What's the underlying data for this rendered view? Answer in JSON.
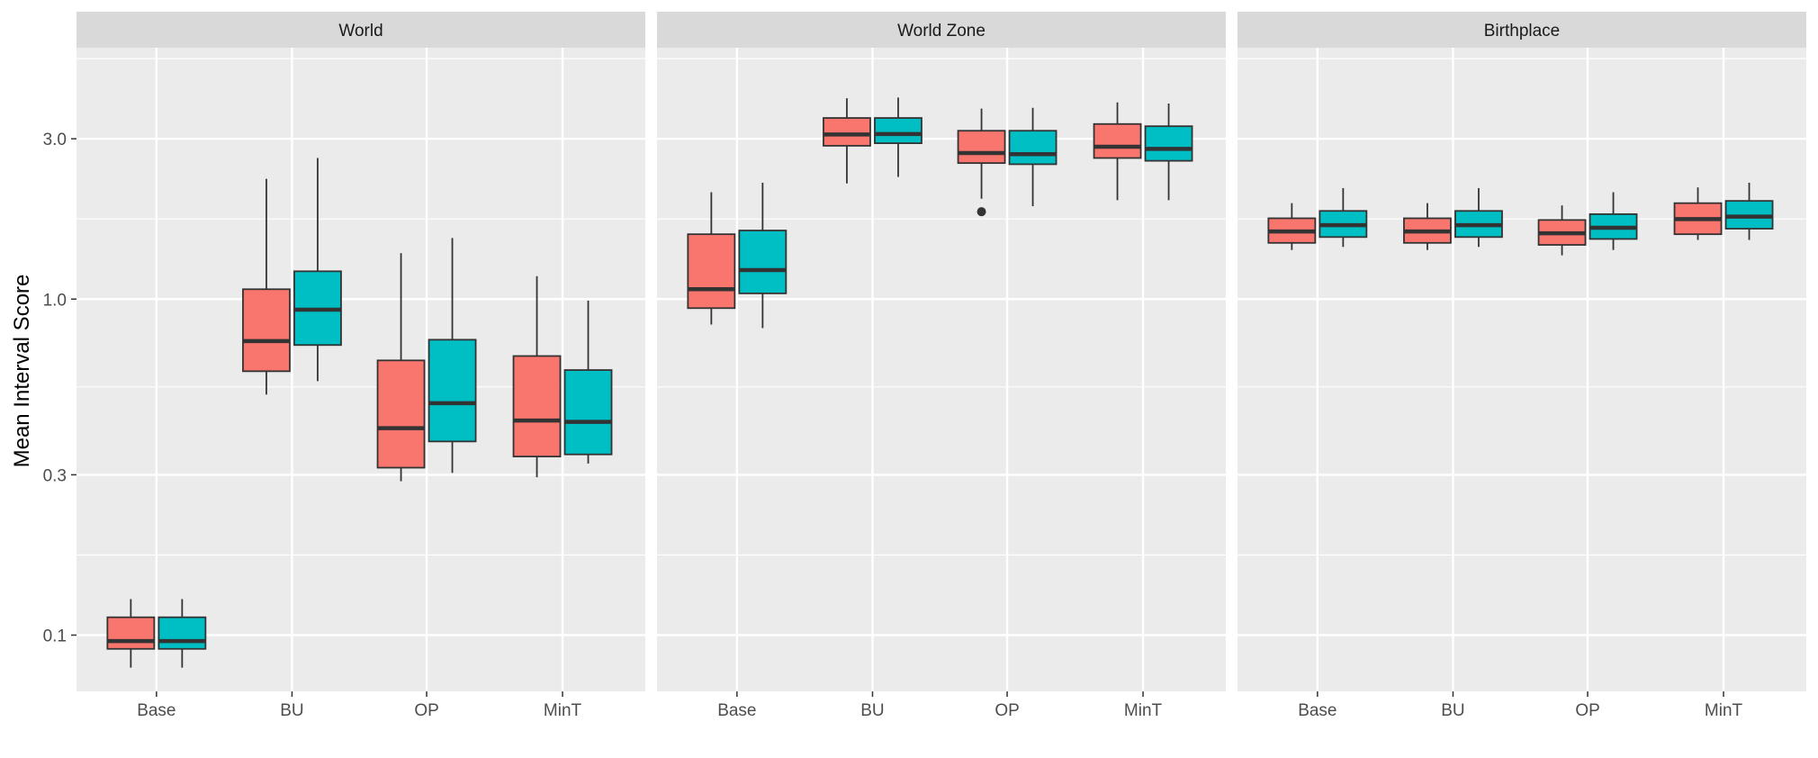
{
  "chart_data": {
    "type": "boxplot",
    "ylabel": "Mean Interval Score",
    "xlabel": "",
    "y_scale": "log10",
    "ylim": [
      0.068,
      5.6
    ],
    "y_ticks": [
      {
        "value": 0.1,
        "label": "0.1"
      },
      {
        "value": 0.3,
        "label": "0.3"
      },
      {
        "value": 1.0,
        "label": "1.0"
      },
      {
        "value": 3.0,
        "label": "3.0"
      }
    ],
    "categories": [
      "Base",
      "BU",
      "OP",
      "MinT"
    ],
    "series_colors": [
      "#F8766D",
      "#00BFC4"
    ],
    "panels": [
      {
        "title": "World",
        "boxes": [
          {
            "category": "Base",
            "series": 1,
            "whisker_low": 0.08,
            "q1": 0.091,
            "median": 0.096,
            "q3": 0.113,
            "whisker_high": 0.128,
            "outliers": []
          },
          {
            "category": "Base",
            "series": 2,
            "whisker_low": 0.08,
            "q1": 0.091,
            "median": 0.096,
            "q3": 0.113,
            "whisker_high": 0.128,
            "outliers": []
          },
          {
            "category": "BU",
            "series": 1,
            "whisker_low": 0.52,
            "q1": 0.61,
            "median": 0.75,
            "q3": 1.07,
            "whisker_high": 2.28,
            "outliers": []
          },
          {
            "category": "BU",
            "series": 2,
            "whisker_low": 0.57,
            "q1": 0.73,
            "median": 0.93,
            "q3": 1.21,
            "whisker_high": 2.63,
            "outliers": []
          },
          {
            "category": "OP",
            "series": 1,
            "whisker_low": 0.287,
            "q1": 0.315,
            "median": 0.413,
            "q3": 0.657,
            "whisker_high": 1.37,
            "outliers": []
          },
          {
            "category": "OP",
            "series": 2,
            "whisker_low": 0.304,
            "q1": 0.377,
            "median": 0.49,
            "q3": 0.757,
            "whisker_high": 1.52,
            "outliers": []
          },
          {
            "category": "MinT",
            "series": 1,
            "whisker_low": 0.295,
            "q1": 0.34,
            "median": 0.435,
            "q3": 0.677,
            "whisker_high": 1.17,
            "outliers": []
          },
          {
            "category": "MinT",
            "series": 2,
            "whisker_low": 0.324,
            "q1": 0.345,
            "median": 0.431,
            "q3": 0.615,
            "whisker_high": 0.99,
            "outliers": []
          }
        ]
      },
      {
        "title": "World Zone",
        "boxes": [
          {
            "category": "Base",
            "series": 1,
            "whisker_low": 0.84,
            "q1": 0.94,
            "median": 1.07,
            "q3": 1.56,
            "whisker_high": 2.08,
            "outliers": []
          },
          {
            "category": "Base",
            "series": 2,
            "whisker_low": 0.82,
            "q1": 1.04,
            "median": 1.22,
            "q3": 1.6,
            "whisker_high": 2.22,
            "outliers": []
          },
          {
            "category": "BU",
            "series": 1,
            "whisker_low": 2.21,
            "q1": 2.86,
            "median": 3.09,
            "q3": 3.46,
            "whisker_high": 3.96,
            "outliers": []
          },
          {
            "category": "BU",
            "series": 2,
            "whisker_low": 2.31,
            "q1": 2.91,
            "median": 3.1,
            "q3": 3.46,
            "whisker_high": 3.98,
            "outliers": []
          },
          {
            "category": "OP",
            "series": 1,
            "whisker_low": 1.99,
            "q1": 2.54,
            "median": 2.72,
            "q3": 3.17,
            "whisker_high": 3.69,
            "outliers": [
              1.82
            ]
          },
          {
            "category": "OP",
            "series": 2,
            "whisker_low": 1.89,
            "q1": 2.52,
            "median": 2.7,
            "q3": 3.17,
            "whisker_high": 3.71,
            "outliers": []
          },
          {
            "category": "MinT",
            "series": 1,
            "whisker_low": 1.97,
            "q1": 2.63,
            "median": 2.84,
            "q3": 3.32,
            "whisker_high": 3.85,
            "outliers": []
          },
          {
            "category": "MinT",
            "series": 2,
            "whisker_low": 1.97,
            "q1": 2.58,
            "median": 2.8,
            "q3": 3.27,
            "whisker_high": 3.82,
            "outliers": []
          }
        ]
      },
      {
        "title": "Birthplace",
        "boxes": [
          {
            "category": "Base",
            "series": 1,
            "whisker_low": 1.4,
            "q1": 1.47,
            "median": 1.59,
            "q3": 1.74,
            "whisker_high": 1.93,
            "outliers": []
          },
          {
            "category": "Base",
            "series": 2,
            "whisker_low": 1.43,
            "q1": 1.53,
            "median": 1.66,
            "q3": 1.83,
            "whisker_high": 2.14,
            "outliers": []
          },
          {
            "category": "BU",
            "series": 1,
            "whisker_low": 1.4,
            "q1": 1.47,
            "median": 1.59,
            "q3": 1.74,
            "whisker_high": 1.93,
            "outliers": []
          },
          {
            "category": "BU",
            "series": 2,
            "whisker_low": 1.43,
            "q1": 1.53,
            "median": 1.66,
            "q3": 1.83,
            "whisker_high": 2.14,
            "outliers": []
          },
          {
            "category": "OP",
            "series": 1,
            "whisker_low": 1.35,
            "q1": 1.45,
            "median": 1.57,
            "q3": 1.72,
            "whisker_high": 1.9,
            "outliers": []
          },
          {
            "category": "OP",
            "series": 2,
            "whisker_low": 1.4,
            "q1": 1.51,
            "median": 1.63,
            "q3": 1.79,
            "whisker_high": 2.08,
            "outliers": []
          },
          {
            "category": "MinT",
            "series": 1,
            "whisker_low": 1.5,
            "q1": 1.56,
            "median": 1.73,
            "q3": 1.93,
            "whisker_high": 2.15,
            "outliers": []
          },
          {
            "category": "MinT",
            "series": 2,
            "whisker_low": 1.5,
            "q1": 1.62,
            "median": 1.76,
            "q3": 1.96,
            "whisker_high": 2.22,
            "outliers": []
          }
        ]
      }
    ]
  }
}
